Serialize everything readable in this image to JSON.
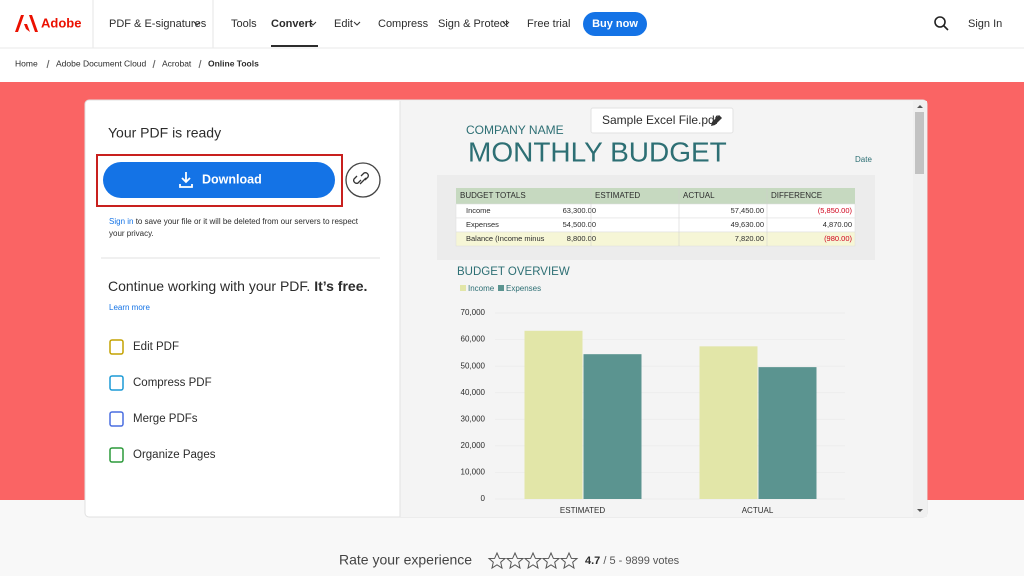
{
  "header": {
    "brand": "Adobe",
    "nav": [
      "PDF & E-signatures",
      "Tools",
      "Convert",
      "Edit",
      "Compress",
      "Sign & Protect",
      "Free trial"
    ],
    "cta": "Buy now",
    "sign_in": "Sign In"
  },
  "breadcrumb": [
    "Home",
    "Adobe Document Cloud",
    "Acrobat",
    "Online Tools"
  ],
  "panel": {
    "title": "Your PDF is ready",
    "download": "Download",
    "sign_in_link": "Sign in",
    "notice": " to save your file or it will be deleted from our servers to respect",
    "notice_2": "your privacy.",
    "continue": "Continue working with your PDF.",
    "free": "It’s free.",
    "learn_more": "Learn more",
    "tools": [
      "Edit PDF",
      "Compress PDF",
      "Merge PDFs",
      "Organize Pages"
    ]
  },
  "preview": {
    "file_name": "Sample Excel File.pdf",
    "company": "COMPANY NAME",
    "heading": "MONTHLY BUDGET",
    "date": "Date",
    "table": {
      "header": [
        "BUDGET TOTALS",
        "ESTIMATED",
        "ACTUAL",
        "DIFFERENCE"
      ],
      "rows": [
        [
          "Income",
          "63,300.00",
          "57,450.00",
          "(5,850.00)"
        ],
        [
          "Expenses",
          "54,500.00",
          "49,630.00",
          "4,870.00"
        ],
        [
          "Balance (Income minus",
          "8,800.00",
          "7,820.00",
          "(980.00)"
        ]
      ]
    }
  },
  "chart_data": {
    "type": "bar",
    "title": "BUDGET OVERVIEW",
    "categories": [
      "ESTIMATED",
      "ACTUAL"
    ],
    "series": [
      {
        "name": "Income",
        "color": "#e2e6a8",
        "values": [
          63300,
          57450
        ]
      },
      {
        "name": "Expenses",
        "color": "#5b9490",
        "values": [
          54500,
          49630
        ]
      }
    ],
    "ylim": [
      0,
      70000
    ],
    "yticks": [
      0,
      {
        "value": 10000,
        "label": "10,000"
      },
      {
        "value": 20000,
        "label": "20,000"
      },
      {
        "value": 30000,
        "label": "30,000"
      },
      {
        "value": 40000,
        "label": "40,000"
      },
      {
        "value": 50000,
        "label": "50,000"
      },
      {
        "value": 60000,
        "label": "60,000"
      },
      {
        "value": 70000,
        "label": "70,000"
      }
    ],
    "grid": true
  },
  "rating": {
    "label": "Rate your experience",
    "score": "4.7",
    "votes": "/ 5 - 9899 votes"
  }
}
